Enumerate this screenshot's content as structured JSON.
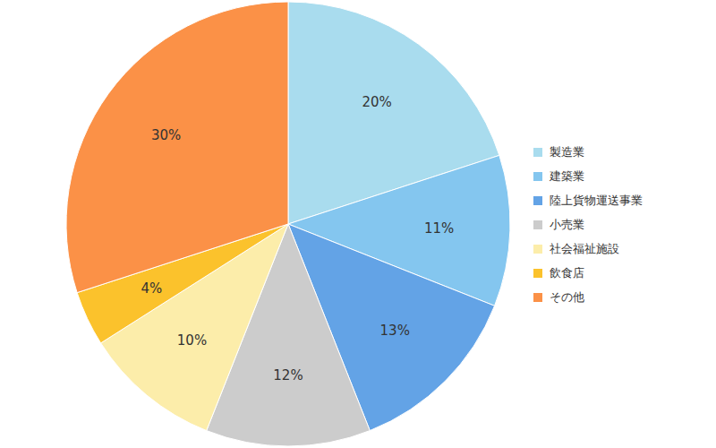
{
  "chart_data": {
    "type": "pie",
    "categories": [
      "製造業",
      "建築業",
      "陸上貨物運送事業",
      "小売業",
      "社会福祉施設",
      "飲食店",
      "その他"
    ],
    "values": [
      20,
      11,
      13,
      12,
      10,
      4,
      30
    ],
    "value_labels": [
      "20%",
      "11%",
      "13%",
      "12%",
      "10%",
      "4%",
      "30%"
    ],
    "colors": [
      "#a9dcee",
      "#84c6ef",
      "#63a3e6",
      "#cccccc",
      "#fcedaa",
      "#fbc22c",
      "#fb9147"
    ],
    "data_labels": true,
    "legend": "right"
  }
}
